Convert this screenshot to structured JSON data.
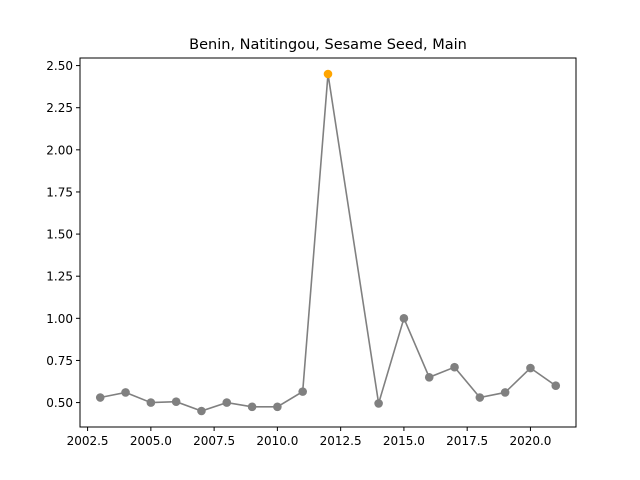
{
  "chart_data": {
    "type": "line",
    "title": "Benin, Natitingou, Sesame Seed, Main",
    "xlabel": "",
    "ylabel": "",
    "xlim": [
      2002.2,
      2021.8
    ],
    "ylim": [
      0.355,
      2.545
    ],
    "x_ticks": [
      2002.5,
      2005.0,
      2007.5,
      2010.0,
      2012.5,
      2015.0,
      2017.5,
      2020.0
    ],
    "x_tick_labels": [
      "2002.5",
      "2005.0",
      "2007.5",
      "2010.0",
      "2012.5",
      "2015.0",
      "2017.5",
      "2020.0"
    ],
    "y_ticks": [
      0.5,
      0.75,
      1.0,
      1.25,
      1.5,
      1.75,
      2.0,
      2.25,
      2.5
    ],
    "y_tick_labels": [
      "0.50",
      "0.75",
      "1.00",
      "1.25",
      "1.50",
      "1.75",
      "2.00",
      "2.25",
      "2.50"
    ],
    "grid": false,
    "series": [
      {
        "x": [
          2003,
          2004,
          2005,
          2006,
          2007,
          2008,
          2009,
          2010,
          2011,
          2012,
          2014,
          2015,
          2016,
          2017,
          2018,
          2019,
          2020,
          2021
        ],
        "values": [
          0.53,
          0.56,
          0.5,
          0.505,
          0.45,
          0.5,
          0.475,
          0.475,
          0.565,
          2.45,
          0.495,
          1.0,
          0.65,
          0.71,
          0.53,
          0.56,
          0.705,
          0.6
        ],
        "color": "#808080",
        "highlight_index": 9,
        "highlight_color": "#ffa500"
      }
    ]
  }
}
